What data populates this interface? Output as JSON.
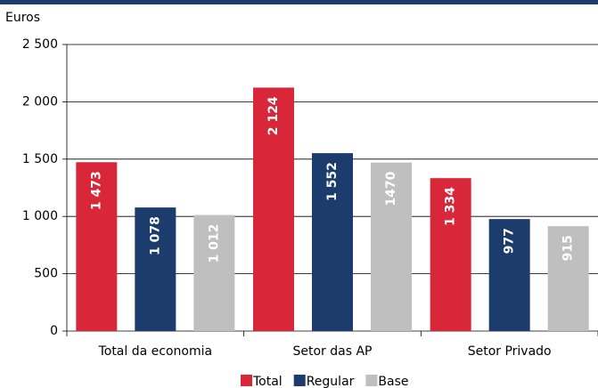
{
  "chart_data": {
    "type": "bar",
    "ylabel": "Euros",
    "categories": [
      "Total da economia",
      "Setor das AP",
      "Setor Privado"
    ],
    "series": [
      {
        "name": "Total",
        "color": "#d9273a",
        "values": [
          1473,
          2124,
          1334
        ],
        "value_labels": [
          "1 473",
          "2 124",
          "1 334"
        ]
      },
      {
        "name": "Regular",
        "color": "#1b3c6c",
        "values": [
          1078,
          1552,
          977
        ],
        "value_labels": [
          "1 078",
          "1 552",
          "977"
        ]
      },
      {
        "name": "Base",
        "color": "#bfbfbf",
        "values": [
          1012,
          1470,
          915
        ],
        "value_labels": [
          "1 012",
          "1470",
          "915"
        ]
      }
    ],
    "ylim": [
      0,
      2500
    ],
    "yticks": [
      0,
      500,
      {
        "value": 1000,
        "label": "1 000"
      },
      {
        "value": 1500,
        "label": "1 500"
      },
      {
        "value": 2000,
        "label": "2 000"
      },
      {
        "value": 2500,
        "label": "2 500"
      }
    ],
    "grid": true
  }
}
